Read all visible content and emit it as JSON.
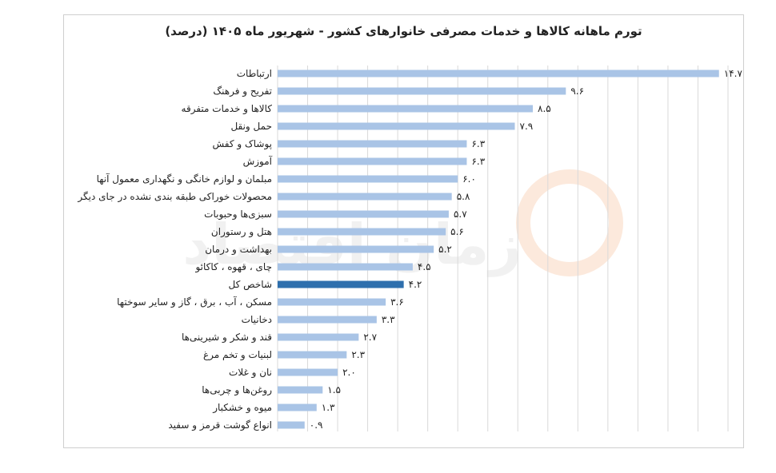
{
  "chart_data": {
    "type": "bar",
    "orientation": "horizontal",
    "title": "تورم ماهانه کالاها و خدمات مصرفی خانوارهای کشور - شهریور ماه ۱۴۰۵ (درصد)",
    "xlim": [
      0,
      15
    ],
    "grid": true,
    "categories": [
      "ارتباطات",
      "تفریح و فرهنگ",
      "کالاها و خدمات متفرقه",
      "حمل ونقل",
      "پوشاک و کفش",
      "آموزش",
      "مبلمان و لوازم خانگی و نگهداری معمول آنها",
      "محصولات خوراکی طبقه بندی نشده در جای دیگر",
      "سبزی‌ها وحبوبات",
      "هتل و رستوران",
      "بهداشت و درمان",
      "چای ، قهوه ، کاکائو",
      "شاخص کل",
      "مسکن ، آب ، برق ، گاز و سایر سوختها",
      "دخانیات",
      "قند و شکر و شیرینی‌ها",
      "لبنیات و تخم مرغ",
      "نان و غلات",
      "روغن‌ها و چربی‌ها",
      "میوه و خشکبار",
      "انواع گوشت قرمز و سفید"
    ],
    "values": [
      14.7,
      9.6,
      8.5,
      7.9,
      6.3,
      6.3,
      6.0,
      5.8,
      5.7,
      5.6,
      5.2,
      4.5,
      4.2,
      3.6,
      3.3,
      2.7,
      2.3,
      2.0,
      1.5,
      1.3,
      0.9
    ],
    "value_labels": [
      "۱۴.۷",
      "۹.۶",
      "۸.۵",
      "۷.۹",
      "۶.۳",
      "۶.۳",
      "۶.۰",
      "۵.۸",
      "۵.۷",
      "۵.۶",
      "۵.۲",
      "۴.۵",
      "۴.۲",
      "۳.۶",
      "۳.۳",
      "۲.۷",
      "۲.۳",
      "۲.۰",
      "۱.۵",
      "۱.۳",
      "۰.۹"
    ],
    "highlight_category": "شاخص کل"
  },
  "colors": {
    "bar": "#a9c4e6",
    "highlight_bar": "#2e6fad",
    "gridline": "#d9d9d9",
    "text": "#222222"
  },
  "watermark": {
    "text": "زمان اقتصاد",
    "logo_color": "#f4b183"
  }
}
